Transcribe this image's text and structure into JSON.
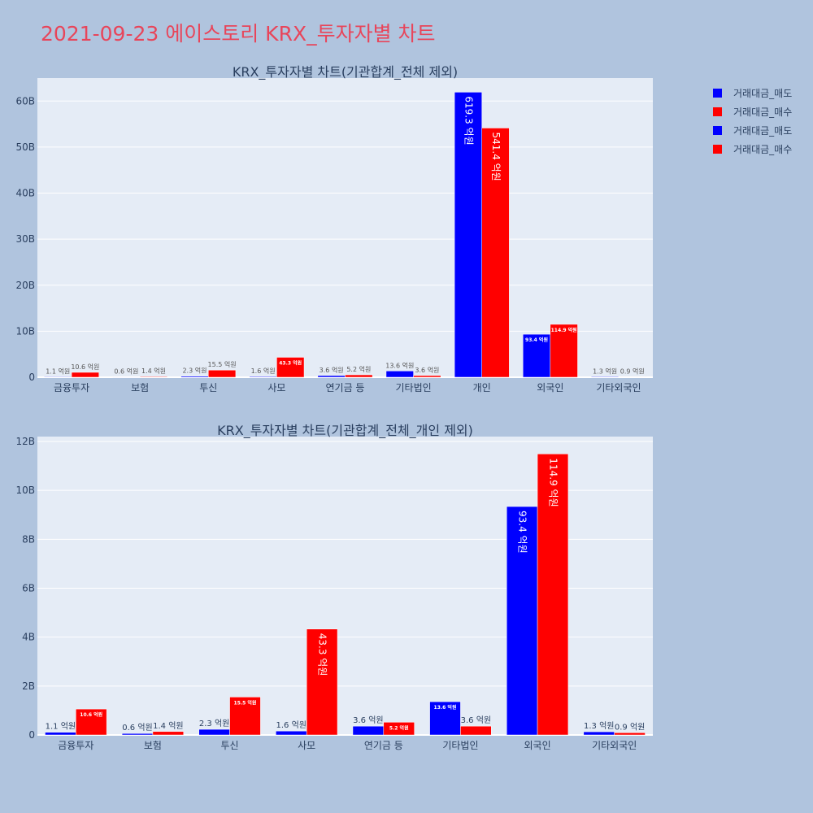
{
  "title": "2021-09-23 에이스토리 KRX_투자자별 차트",
  "colors": {
    "sell": "#0000ff",
    "buy": "#ff0000",
    "plot_bg": "#e5ecf6",
    "page_bg": "#b0c4de",
    "axis_text": "#2a3f5f",
    "title_color": "#e8455a"
  },
  "legend": {
    "placement": "top-right",
    "items": [
      {
        "label": "거래대금_매도",
        "color": "#0000ff"
      },
      {
        "label": "거래대금_매수",
        "color": "#ff0000"
      },
      {
        "label": "거래대금_매도",
        "color": "#0000ff"
      },
      {
        "label": "거래대금_매수",
        "color": "#ff0000"
      }
    ]
  },
  "chart_data": [
    {
      "type": "bar",
      "title": "KRX_투자자별 차트(기관합계_전체 제외)",
      "categories": [
        "금융투자",
        "보험",
        "투신",
        "사모",
        "연기금 등",
        "기타법인",
        "개인",
        "외국인",
        "기타외국인"
      ],
      "series": [
        {
          "name": "거래대금_매도",
          "color": "#0000ff",
          "values": [
            110000000,
            60000000,
            230000000,
            160000000,
            360000000,
            1360000000,
            61930000000,
            9340000000,
            130000000
          ],
          "labels": [
            "1.1 억원",
            "0.6 억원",
            "2.3 억원",
            "1.6 억원",
            "3.6 억원",
            "13.6 억원",
            "619.3 억원",
            "93.4 억원",
            "1.3 억원"
          ]
        },
        {
          "name": "거래대금_매수",
          "color": "#ff0000",
          "values": [
            1060000000,
            140000000,
            1550000000,
            4330000000,
            520000000,
            360000000,
            54140000000,
            11490000000,
            90000000
          ],
          "labels": [
            "10.6 억원",
            "1.4 억원",
            "15.5 억원",
            "43.3 억원",
            "5.2 억원",
            "3.6 억원",
            "541.4 억원",
            "114.9 억원",
            "0.9 억원"
          ]
        }
      ],
      "ylim": [
        0,
        65000000000
      ],
      "yticks": [
        0,
        10000000000,
        20000000000,
        30000000000,
        40000000000,
        50000000000,
        60000000000
      ],
      "ytick_labels": [
        "0",
        "10B",
        "20B",
        "30B",
        "40B",
        "50B",
        "60B"
      ],
      "grid": true
    },
    {
      "type": "bar",
      "title": "KRX_투자자별 차트(기관합계_전체_개인 제외)",
      "categories": [
        "금융투자",
        "보험",
        "투신",
        "사모",
        "연기금 등",
        "기타법인",
        "외국인",
        "기타외국인"
      ],
      "series": [
        {
          "name": "거래대금_매도",
          "color": "#0000ff",
          "values": [
            110000000,
            60000000,
            230000000,
            160000000,
            360000000,
            1360000000,
            9340000000,
            130000000
          ],
          "labels": [
            "1.1 억원",
            "0.6 억원",
            "2.3 억원",
            "1.6 억원",
            "3.6 억원",
            "13.6 억원",
            "93.4 억원",
            "1.3 억원"
          ]
        },
        {
          "name": "거래대금_매수",
          "color": "#ff0000",
          "values": [
            1060000000,
            140000000,
            1550000000,
            4330000000,
            520000000,
            360000000,
            11490000000,
            90000000
          ],
          "labels": [
            "10.6 억원",
            "1.4 억원",
            "15.5 억원",
            "43.3 억원",
            "5.2 억원",
            "3.6 억원",
            "114.9 억원",
            "0.9 억원"
          ]
        }
      ],
      "ylim": [
        0,
        12200000000
      ],
      "yticks": [
        0,
        2000000000,
        4000000000,
        6000000000,
        8000000000,
        10000000000,
        12000000000
      ],
      "ytick_labels": [
        "0",
        "2B",
        "4B",
        "6B",
        "8B",
        "10B",
        "12B"
      ],
      "grid": true
    }
  ]
}
